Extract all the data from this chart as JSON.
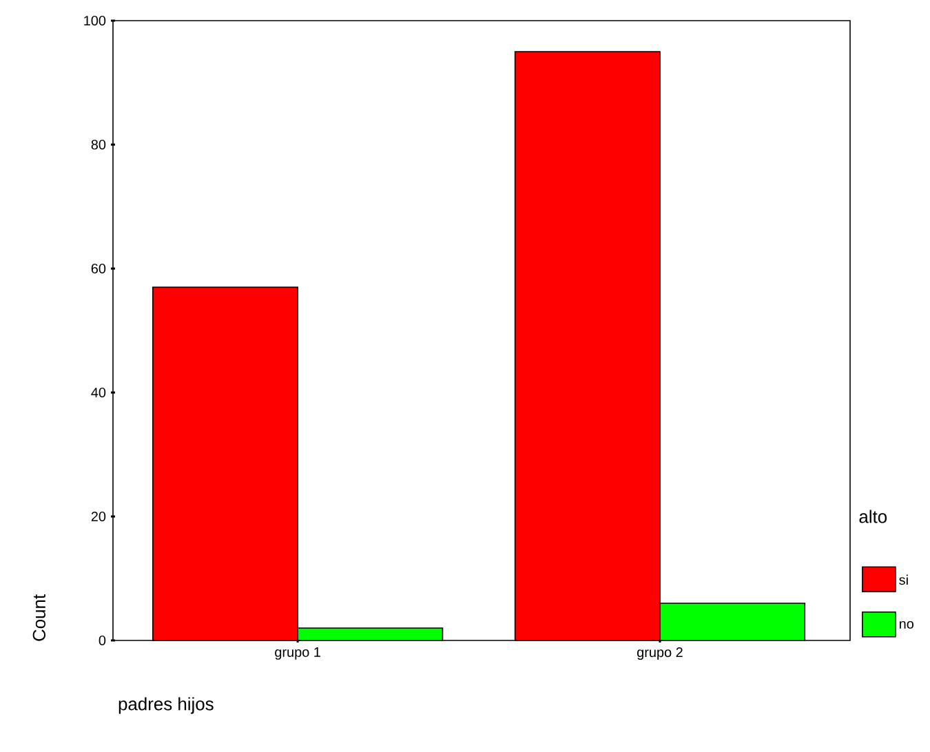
{
  "chart_data": {
    "type": "bar",
    "xlabel": "padres hijos",
    "ylabel": "Count",
    "legend_title": "alto",
    "categories": [
      "grupo 1",
      "grupo 2"
    ],
    "series": [
      {
        "name": "si",
        "color": "#ff0000",
        "values": [
          57,
          95
        ]
      },
      {
        "name": "no",
        "color": "#00ff00",
        "values": [
          2,
          6
        ]
      }
    ],
    "ylim": [
      0,
      100
    ],
    "yticks": [
      0,
      20,
      40,
      60,
      80,
      100
    ],
    "legend": "right"
  }
}
